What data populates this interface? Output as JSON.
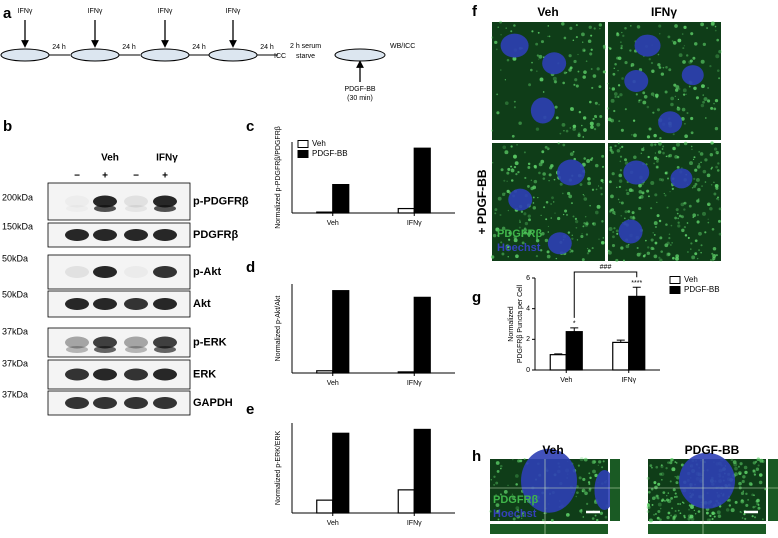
{
  "panel_labels": [
    "a",
    "b",
    "c",
    "d",
    "e",
    "f",
    "g",
    "h"
  ],
  "timeline": {
    "treatment": [
      "IFNγ",
      "IFNγ",
      "IFNγ",
      "IFNγ"
    ],
    "intervals": [
      "24 h",
      "24 h",
      "24 h",
      "24 h"
    ],
    "icc": "ICC",
    "starve": [
      "2 h serum",
      "starve"
    ],
    "endpoint": "WB/ICC",
    "stimulus": [
      "PDGF-BB",
      "(30 min)"
    ]
  },
  "blot": {
    "groups": [
      "Veh",
      "IFNγ"
    ],
    "lanes": [
      "−",
      "+",
      "−",
      "+"
    ],
    "rows": [
      {
        "kda": "200kDa",
        "protein": "p-PDGFRβ"
      },
      {
        "kda": "150kDa",
        "protein": "PDGFRβ"
      },
      {
        "kda": "50kDa",
        "protein": "p-Akt"
      },
      {
        "kda": "50kDa",
        "protein": "Akt"
      },
      {
        "kda": "37kDa",
        "protein": "p-ERK"
      },
      {
        "kda": "37kDa",
        "protein": "ERK"
      },
      {
        "kda": "37kDa",
        "protein": "GAPDH"
      }
    ]
  },
  "micrographs_f": {
    "columns": [
      "Veh",
      "IFNγ"
    ],
    "row_label": "+ PDGF-BB",
    "stains": [
      "PDGFRβ",
      "Hoechst"
    ]
  },
  "micrographs_h": {
    "columns": [
      "Veh",
      "PDGF-BB"
    ],
    "stains": [
      "PDGFRβ",
      "Hoechst"
    ]
  },
  "chart_data": [
    {
      "type": "bar",
      "y_label": [
        "Normalized p-PDGFRβ/PDGFRβ"
      ],
      "categories": [
        "Veh",
        "IFNγ"
      ],
      "series": [
        {
          "name": "Veh",
          "color": "#ffffff",
          "values": [
            1,
            5
          ]
        },
        {
          "name": "PDGF-BB",
          "color": "#000000",
          "values": [
            32,
            73
          ]
        }
      ],
      "ylim": [
        0,
        80
      ],
      "legend": "upper left"
    },
    {
      "type": "bar",
      "y_label": [
        "Normalized p-Akt/Akt"
      ],
      "categories": [
        "Veh",
        "IFNγ"
      ],
      "series": [
        {
          "color": "#ffffff",
          "values": [
            1,
            0.5
          ]
        },
        {
          "color": "#000000",
          "values": [
            37,
            34
          ]
        }
      ],
      "ylim": [
        0,
        40
      ]
    },
    {
      "type": "bar",
      "y_label": [
        "Normalized p-ERK/ERK"
      ],
      "categories": [
        "Veh",
        "IFNγ"
      ],
      "series": [
        {
          "color": "#ffffff",
          "values": [
            1,
            1.8
          ]
        },
        {
          "color": "#000000",
          "values": [
            6.2,
            6.5
          ]
        }
      ],
      "ylim": [
        0,
        7
      ]
    },
    {
      "type": "bar",
      "y_label": [
        "Normalized",
        "PDGFRβ Puncta per Cell"
      ],
      "categories": [
        "Veh",
        "IFNγ"
      ],
      "series": [
        {
          "name": "Veh",
          "color": "#ffffff",
          "values": [
            1.0,
            1.8
          ],
          "errors": [
            0.05,
            0.15
          ]
        },
        {
          "name": "PDGF-BB",
          "color": "#000000",
          "values": [
            2.5,
            4.8
          ],
          "errors": [
            0.25,
            0.6
          ]
        }
      ],
      "ylim": [
        0,
        6
      ],
      "yticks": [
        0,
        2,
        4,
        6
      ],
      "legend": "upper right",
      "annotations": [
        "*",
        "****",
        "###"
      ]
    }
  ]
}
